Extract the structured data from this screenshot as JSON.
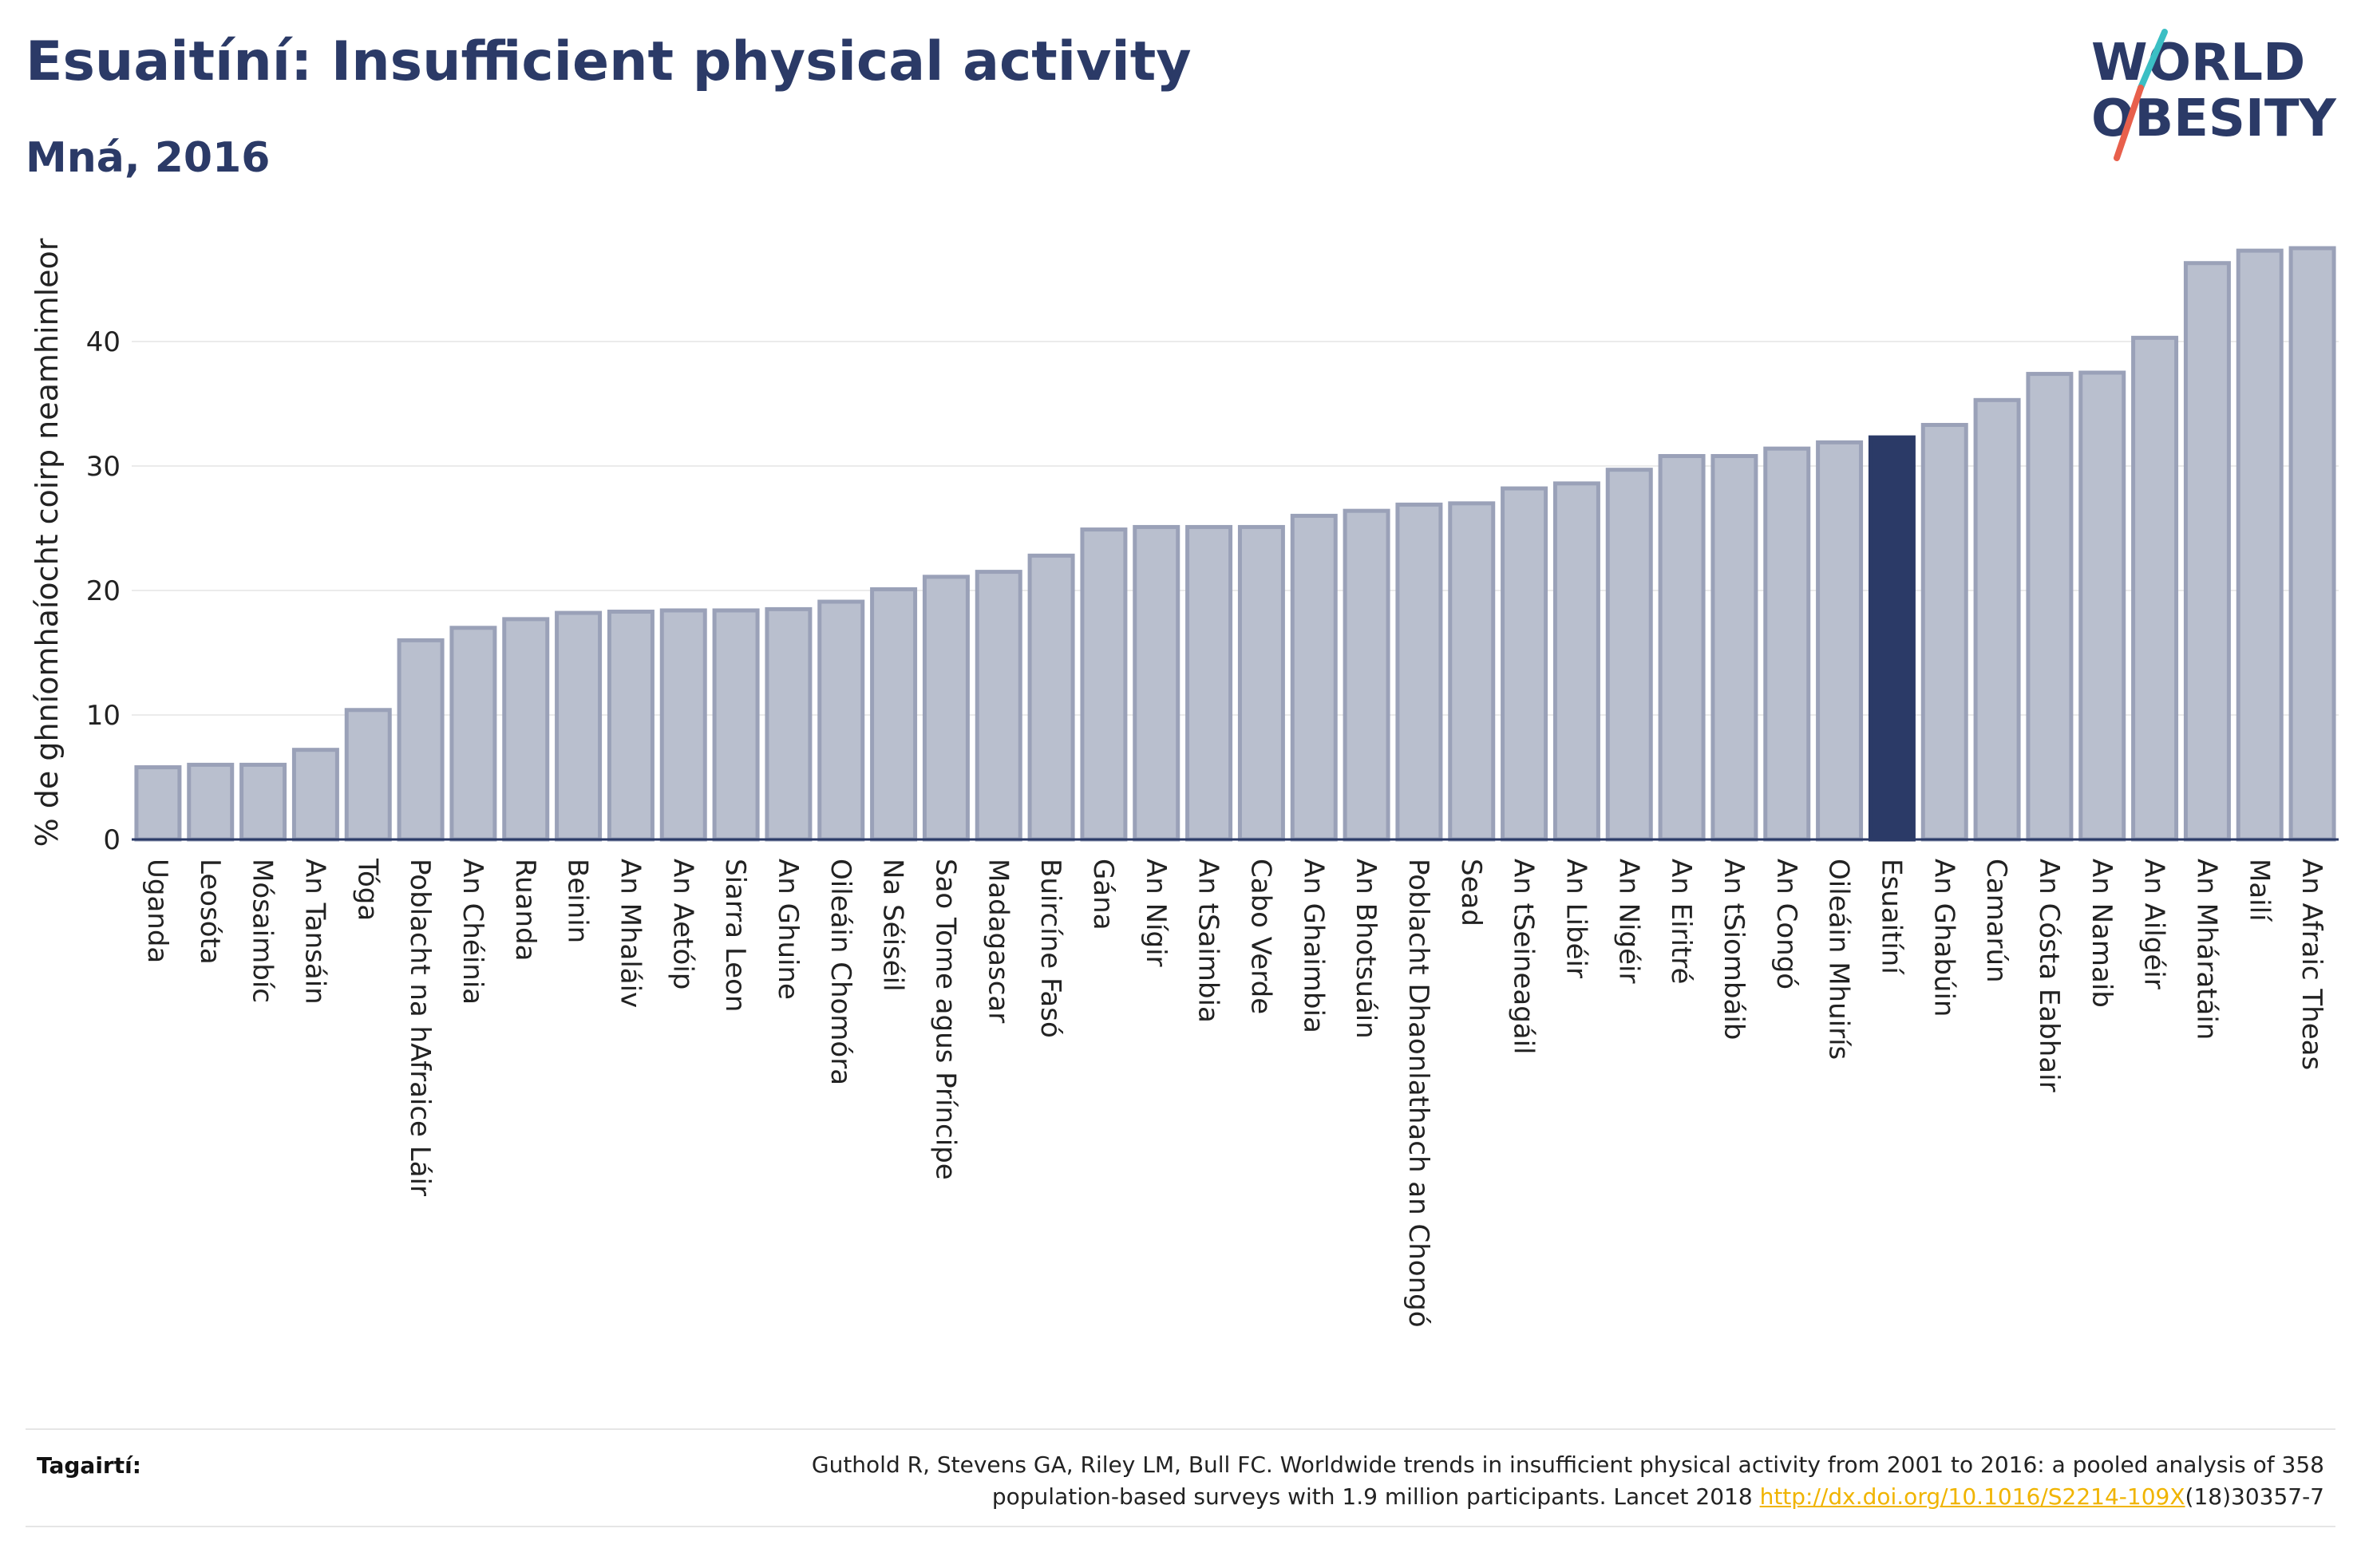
{
  "header": {
    "title": "Esuaitíní: Insufficient physical activity",
    "subtitle": "Mná, 2016"
  },
  "logo": {
    "line1": "WORLD",
    "line2": "OBESITY",
    "text_color": "#2b3a67",
    "slash_colors": [
      "#3bbfc4",
      "#e8604c"
    ]
  },
  "colors": {
    "bar_default": "#b9bfce",
    "bar_border": "#9aa1b8",
    "bar_highlight": "#2b3a67",
    "grid": "#ebebeb",
    "axis": "#2b3a67"
  },
  "chart_data": {
    "type": "bar",
    "title": "Esuaitíní: Insufficient physical activity",
    "subtitle": "Mná, 2016",
    "xlabel": "",
    "ylabel": "% de ghníomhaíocht coirp neamhimleor",
    "ylim": [
      0,
      50
    ],
    "yticks": [
      0,
      10,
      20,
      30,
      40
    ],
    "grid": true,
    "highlight": "Esuaitíní",
    "categories": [
      "Uganda",
      "Leosóta",
      "Mósaimbíc",
      "An Tansáin",
      "Tóga",
      "Poblacht na hAfraice Láir",
      "An Chéinia",
      "Ruanda",
      "Beinin",
      "An Mhaláiv",
      "An Aetóip",
      "Siarra Leon",
      "An Ghuine",
      "Oileáin Chomóra",
      "Na Séiséil",
      "Sao Tome agus Príncipe",
      "Madagascar",
      "Buircíne Fasó",
      "Gána",
      "An Nígir",
      "An tSaimbia",
      "Cabo Verde",
      "An Ghaimbia",
      "An Bhotsuáin",
      "Poblacht Dhaonlathach an Chongó",
      "Sead",
      "An tSeineagáil",
      "An Libéir",
      "An Nigéir",
      "An Eiritré",
      "An tSiombáib",
      "An Congó",
      "Oileáin Mhuirís",
      "Esuaitíní",
      "An Ghabúin",
      "Camarún",
      "An Cósta Eabhair",
      "An Namaib",
      "An Ailgéir",
      "An Mháratáin",
      "Mailí",
      "An Afraic Theas"
    ],
    "values": [
      5.8,
      6.0,
      6.0,
      7.2,
      10.4,
      16.0,
      17.0,
      17.7,
      18.2,
      18.3,
      18.4,
      18.4,
      18.5,
      19.1,
      20.1,
      21.1,
      21.5,
      22.8,
      24.9,
      25.1,
      25.1,
      25.1,
      26.0,
      26.4,
      26.9,
      27.0,
      28.2,
      28.6,
      29.7,
      30.8,
      30.8,
      31.4,
      31.9,
      32.3,
      33.3,
      35.3,
      37.4,
      37.5,
      40.3,
      46.3,
      47.3,
      47.5
    ]
  },
  "reference": {
    "label": "Tagairtí:",
    "text_line1": "Guthold R, Stevens GA, Riley LM, Bull FC. Worldwide trends in insufficient physical activity from 2001 to 2016: a pooled analysis of 358",
    "text_line2_pre": "population-based surveys with 1.9 million participants. Lancet 2018 ",
    "link": "http://dx.doi.org/10.1016/S2214-109X",
    "text_line2_post": "(18)30357-7"
  }
}
